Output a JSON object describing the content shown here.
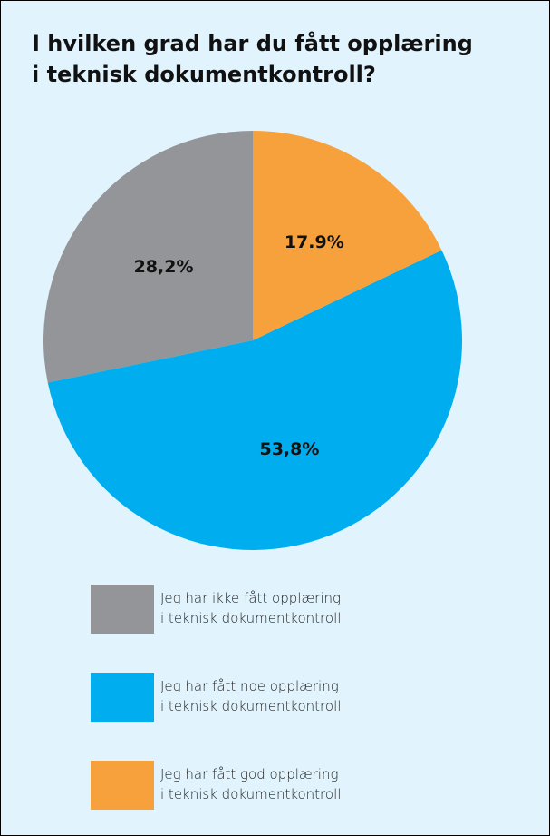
{
  "chart_data": {
    "type": "pie",
    "title": "I hvilken grad har du fått opplæring\ni teknisk dokumentkontroll?",
    "categories": [
      "Jeg har ikke fått opplæring\ni teknisk dokumentkontroll",
      "Jeg har fått noe opplæring\ni teknisk dokumentkontroll",
      "Jeg har fått god opplæring\ni teknisk dokumentkontroll"
    ],
    "values": [
      28.2,
      53.8,
      17.9
    ],
    "value_labels": [
      "28,2%",
      "53,8%",
      "17.9%"
    ],
    "colors": [
      "#939598",
      "#00aeef",
      "#f7a13d"
    ]
  }
}
